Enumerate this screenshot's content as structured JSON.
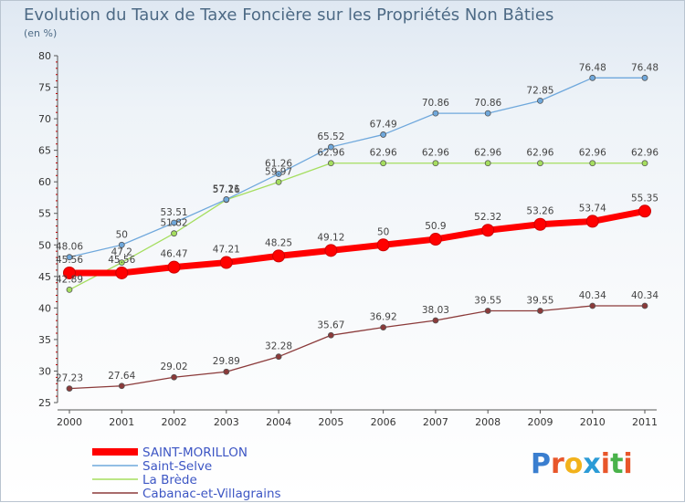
{
  "chart_data": {
    "type": "line",
    "title": "Evolution du Taux de Taxe Foncière sur les Propriétés Non Bâties",
    "subtitle": "(en %)",
    "x": [
      "2000",
      "2001",
      "2002",
      "2003",
      "2004",
      "2005",
      "2006",
      "2007",
      "2008",
      "2009",
      "2010",
      "2011"
    ],
    "ylim": [
      25,
      80
    ],
    "yticks": [
      25,
      30,
      35,
      40,
      45,
      50,
      55,
      60,
      65,
      70,
      75,
      80
    ],
    "grid": false,
    "legend_position": "bottom-left",
    "series": [
      {
        "name": "SAINT-MORILLON",
        "color": "#ff0000",
        "values": [
          45.56,
          45.56,
          46.47,
          47.21,
          48.25,
          49.12,
          50,
          50.9,
          52.32,
          53.26,
          53.74,
          55.35
        ],
        "labels": [
          "45.56",
          "45.56",
          "46.47",
          "47.21",
          "48.25",
          "49.12",
          "50",
          "50.9",
          "52.32",
          "53.26",
          "53.74",
          "55.35"
        ]
      },
      {
        "name": "Saint-Selve",
        "color": "#6fa8dc",
        "values": [
          48.06,
          50,
          53.51,
          57.21,
          61.26,
          65.52,
          67.49,
          70.86,
          70.86,
          72.85,
          76.48,
          76.48
        ],
        "labels": [
          "48.06",
          "50",
          "53.51",
          "57.21",
          "61.26",
          "65.52",
          "67.49",
          "70.86",
          "70.86",
          "72.85",
          "76.48",
          "76.48"
        ]
      },
      {
        "name": "La Brède",
        "color": "#a5de5f",
        "values": [
          42.89,
          47.2,
          51.82,
          57.16,
          59.97,
          62.96,
          62.96,
          62.96,
          62.96,
          62.96,
          62.96,
          62.96
        ],
        "labels": [
          "42.89",
          "47.2",
          "51.82",
          "57.16",
          "59.97",
          "62.96",
          "62.96",
          "62.96",
          "62.96",
          "62.96",
          "62.96",
          "62.96"
        ]
      },
      {
        "name": "Cabanac-et-Villagrains",
        "color": "#8b3a3a",
        "values": [
          27.23,
          27.64,
          29.02,
          29.89,
          32.28,
          35.67,
          36.92,
          38.03,
          39.55,
          39.55,
          40.34,
          40.34
        ],
        "labels": [
          "27.23",
          "27.64",
          "29.02",
          "29.89",
          "32.28",
          "35.67",
          "36.92",
          "38.03",
          "39.55",
          "39.55",
          "40.34",
          "40.34"
        ]
      }
    ]
  },
  "logo": {
    "text": "Proxiti",
    "colors": [
      "#3a7ecf",
      "#e8562a",
      "#f2b21b",
      "#2b9bd6",
      "#e8562a",
      "#49b24a",
      "#e8562a"
    ]
  }
}
